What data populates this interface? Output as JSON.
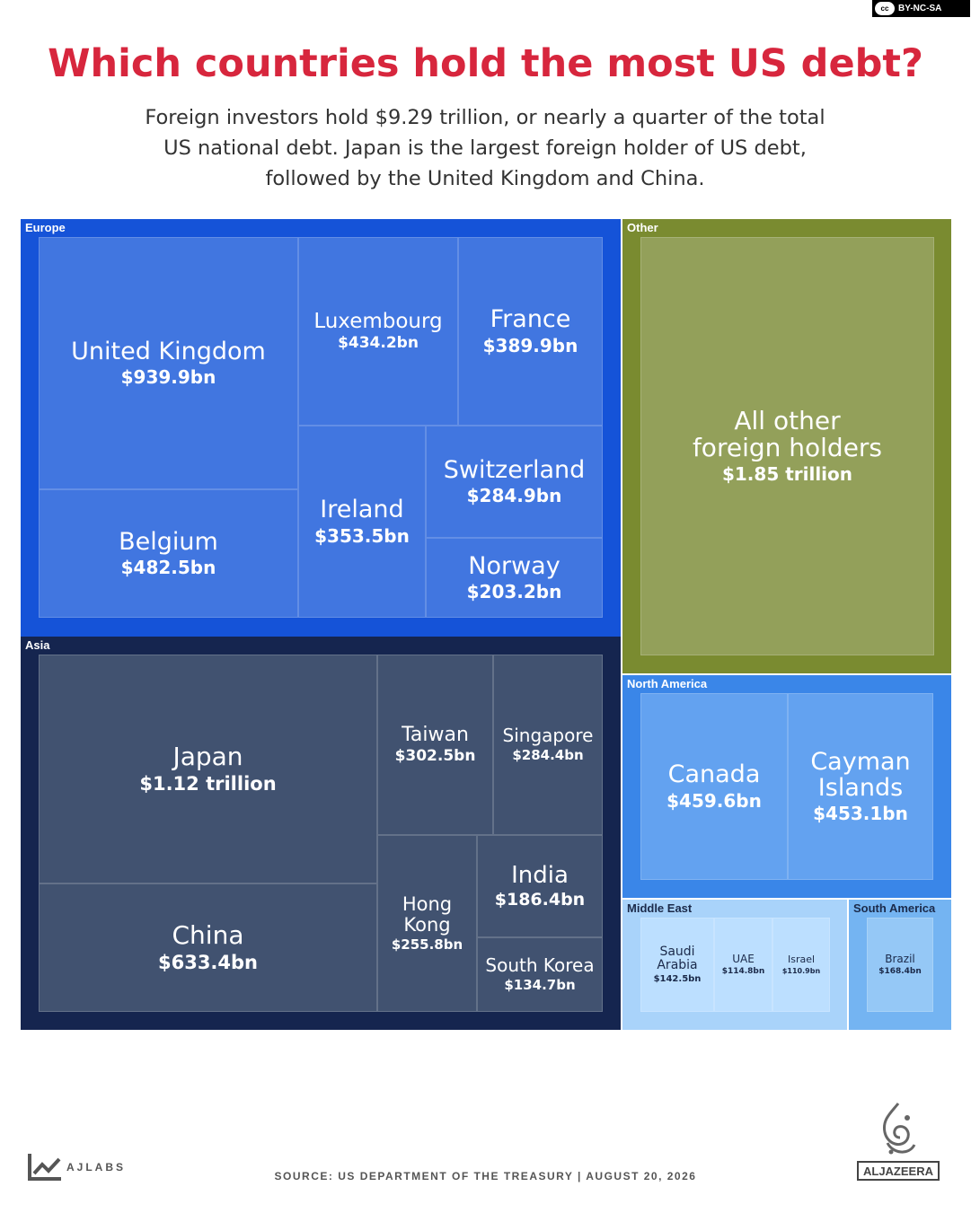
{
  "license": "BY-NC-SA",
  "title": "Which countries hold the most US debt?",
  "subtitle": "Foreign investors hold $9.29 trillion, or nearly a quarter of the total US national debt. Japan is the largest foreign holder of US debt, followed by the United Kingdom and China.",
  "source": "SOURCE: US DEPARTMENT OF THE TREASURY  |  AUGUST 20, 2026",
  "footer_brand": "AJLABS",
  "publisher": "ALJAZEERA",
  "colors": {
    "title": "#d7263d",
    "europe_frame": "#1553d8",
    "europe_cell": "#4176e0",
    "asia_frame": "#15254f",
    "asia_cell": "#415270",
    "other_frame": "#7a8b30",
    "other_cell": "#93a05a",
    "north_america_frame": "#3a86e8",
    "north_america_cell": "#63a2f0",
    "middle_east_frame": "#a9d3fa",
    "middle_east_cell": "#bcdfff",
    "south_america_frame": "#74b4f2",
    "south_america_cell": "#95c8f6"
  },
  "chart_data": {
    "type": "treemap",
    "units": "US$ of US debt held",
    "groups": [
      {
        "name": "Europe",
        "items": [
          {
            "name": "United Kingdom",
            "label": "$939.9bn",
            "value": 939.9
          },
          {
            "name": "Belgium",
            "label": "$482.5bn",
            "value": 482.5
          },
          {
            "name": "Luxembourg",
            "label": "$434.2bn",
            "value": 434.2
          },
          {
            "name": "France",
            "label": "$389.9bn",
            "value": 389.9
          },
          {
            "name": "Ireland",
            "label": "$353.5bn",
            "value": 353.5
          },
          {
            "name": "Switzerland",
            "label": "$284.9bn",
            "value": 284.9
          },
          {
            "name": "Norway",
            "label": "$203.2bn",
            "value": 203.2
          }
        ]
      },
      {
        "name": "Asia",
        "items": [
          {
            "name": "Japan",
            "label": "$1.12 trillion",
            "value": 1120
          },
          {
            "name": "China",
            "label": "$633.4bn",
            "value": 633.4
          },
          {
            "name": "Taiwan",
            "label": "$302.5bn",
            "value": 302.5
          },
          {
            "name": "Singapore",
            "label": "$284.4bn",
            "value": 284.4
          },
          {
            "name": "Hong\nKong",
            "label": "$255.8bn",
            "value": 255.8
          },
          {
            "name": "India",
            "label": "$186.4bn",
            "value": 186.4
          },
          {
            "name": "South Korea",
            "label": "$134.7bn",
            "value": 134.7
          }
        ]
      },
      {
        "name": "Other",
        "items": [
          {
            "name": "All other\nforeign holders",
            "label": "$1.85 trillion",
            "value": 1850
          }
        ]
      },
      {
        "name": "North America",
        "items": [
          {
            "name": "Canada",
            "label": "$459.6bn",
            "value": 459.6
          },
          {
            "name": "Cayman\nIslands",
            "label": "$453.1bn",
            "value": 453.1
          }
        ]
      },
      {
        "name": "Middle East",
        "items": [
          {
            "name": "Saudi\nArabia",
            "label": "$142.5bn",
            "value": 142.5
          },
          {
            "name": "UAE",
            "label": "$114.8bn",
            "value": 114.8
          },
          {
            "name": "Israel",
            "label": "$110.9bn",
            "value": 110.9
          }
        ]
      },
      {
        "name": "South America",
        "items": [
          {
            "name": "Brazil",
            "label": "$168.4bn",
            "value": 168.4
          }
        ]
      }
    ]
  }
}
